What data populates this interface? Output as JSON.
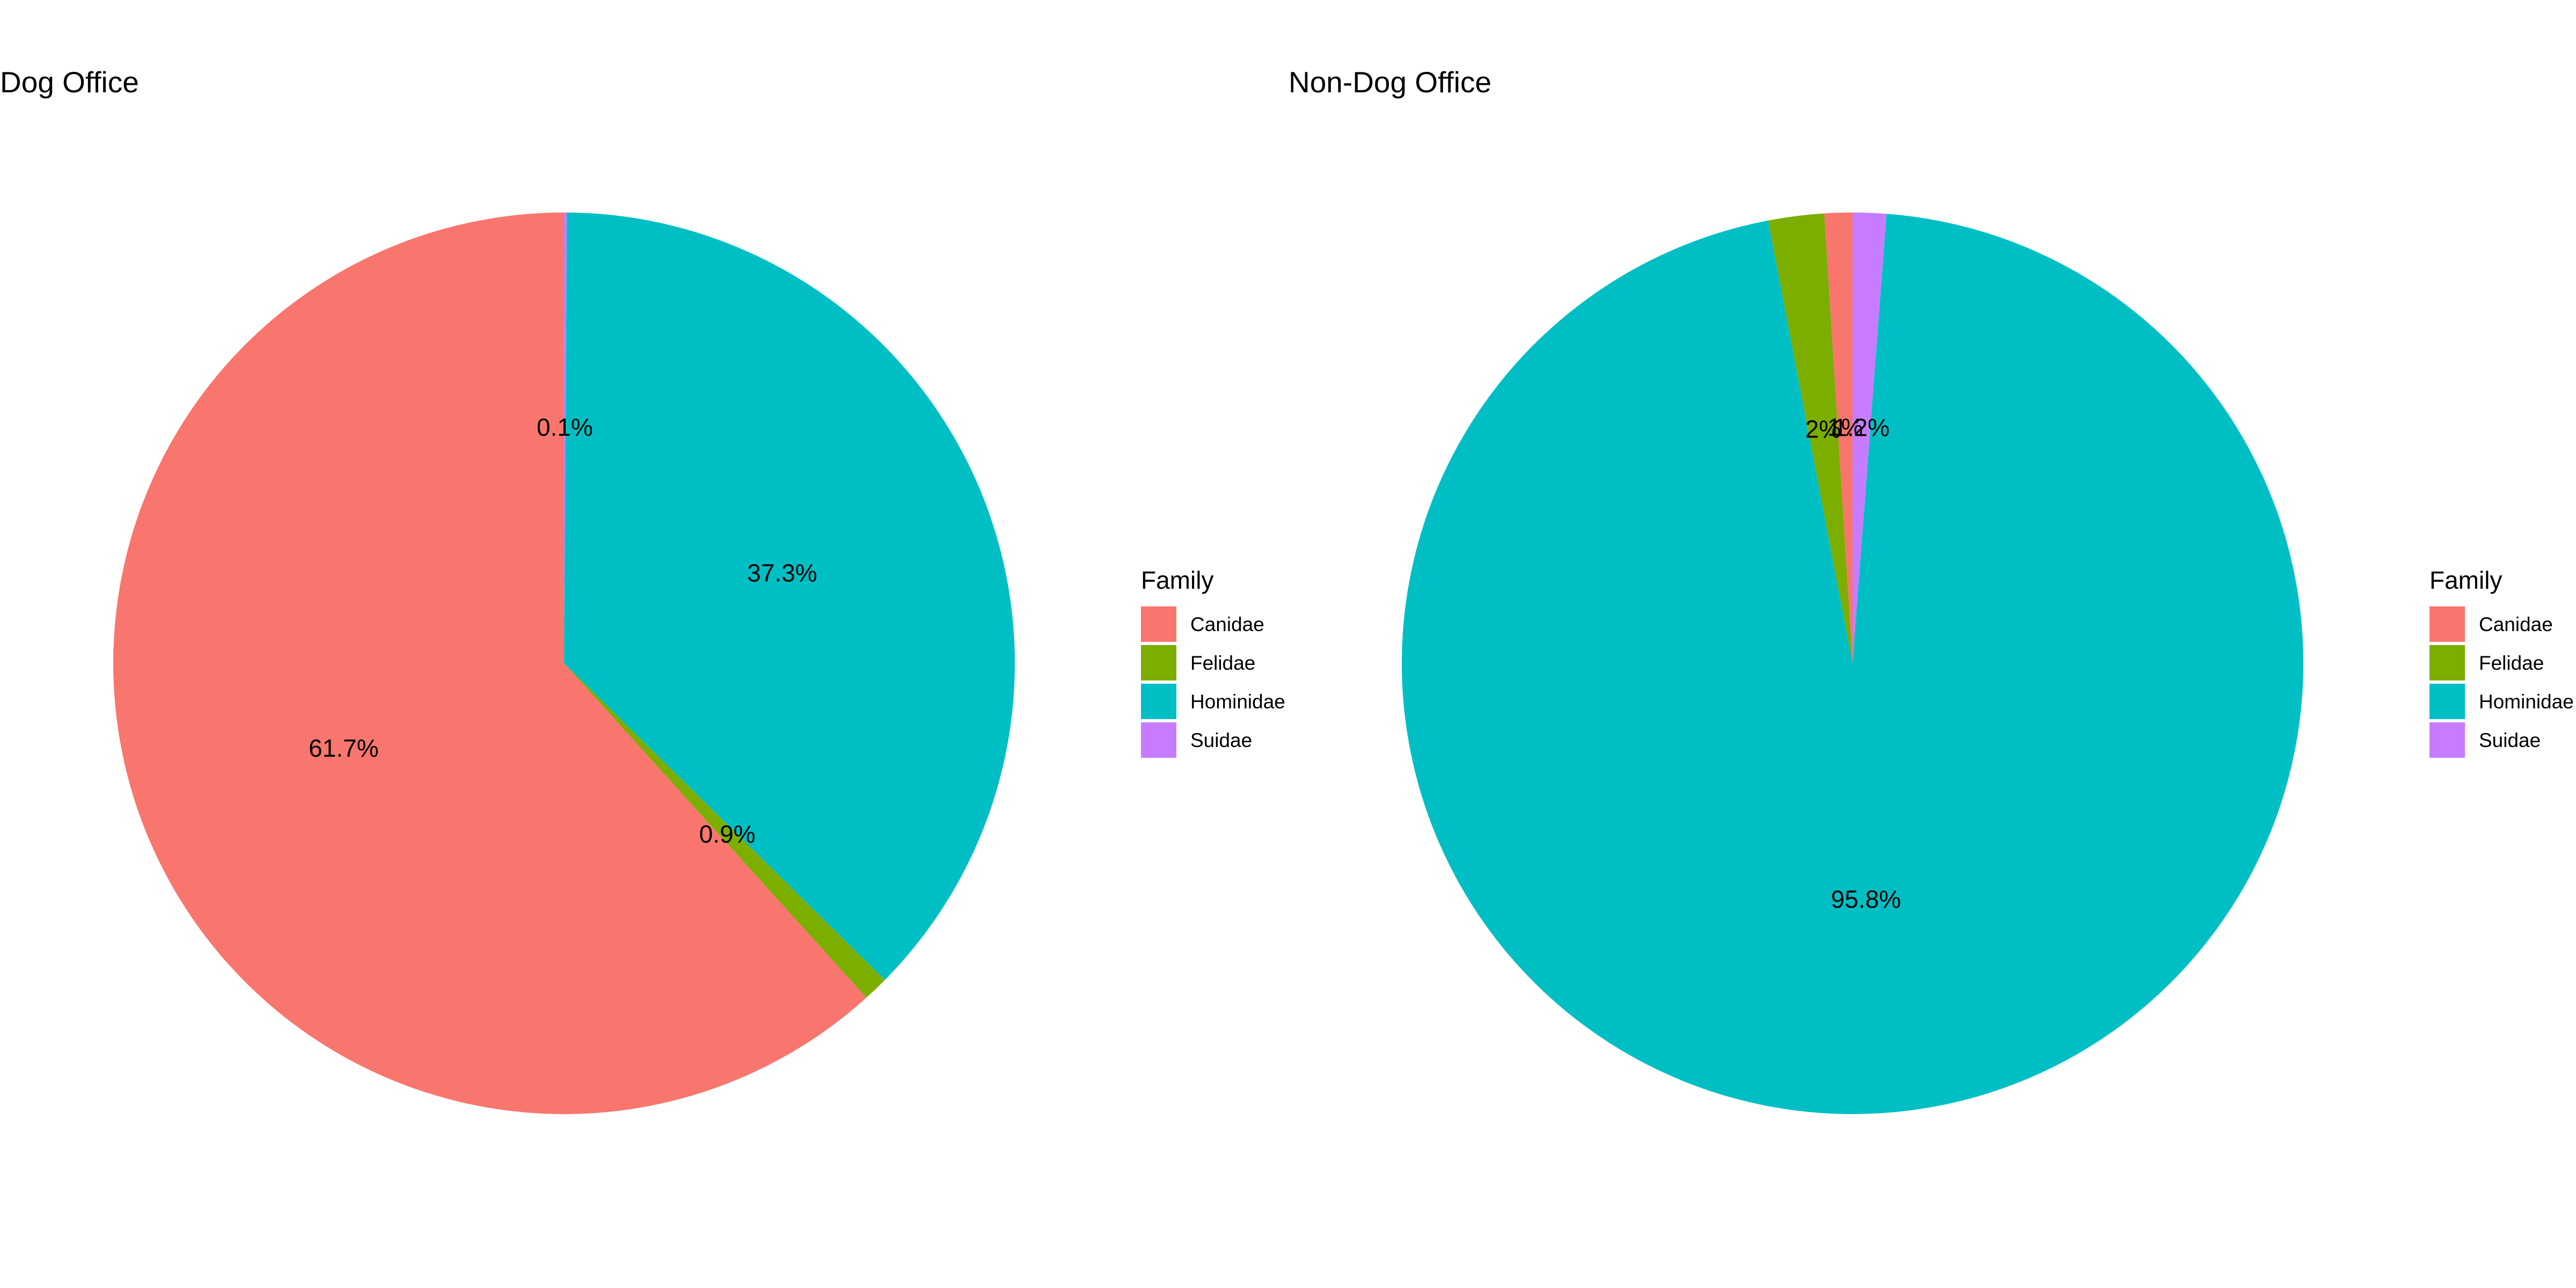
{
  "chart_data": [
    {
      "type": "pie",
      "title": "Dog Office",
      "legend_title": "Family",
      "legend_position": "right",
      "start_angle_deg": 0,
      "direction": "clockwise",
      "categories": [
        "Suidae",
        "Hominidae",
        "Felidae",
        "Canidae"
      ],
      "values": [
        0.1,
        37.3,
        0.9,
        61.7
      ],
      "labels": [
        "0.1%",
        "37.3%",
        "0.9%",
        "61.7%"
      ],
      "legend": [
        "Canidae",
        "Felidae",
        "Hominidae",
        "Suidae"
      ]
    },
    {
      "type": "pie",
      "title": "Non-Dog Office",
      "legend_title": "Family",
      "legend_position": "right",
      "start_angle_deg": 0,
      "direction": "clockwise",
      "categories": [
        "Suidae",
        "Hominidae",
        "Felidae",
        "Canidae"
      ],
      "values": [
        1.2,
        95.8,
        2,
        1
      ],
      "labels": [
        "1.2%",
        "95.8%",
        "2%",
        "1%"
      ],
      "legend": [
        "Canidae",
        "Felidae",
        "Hominidae",
        "Suidae"
      ]
    }
  ],
  "colors": {
    "Canidae": "#F8766D",
    "Felidae": "#7CAE00",
    "Hominidae": "#00BFC4",
    "Suidae": "#C77CFF"
  }
}
